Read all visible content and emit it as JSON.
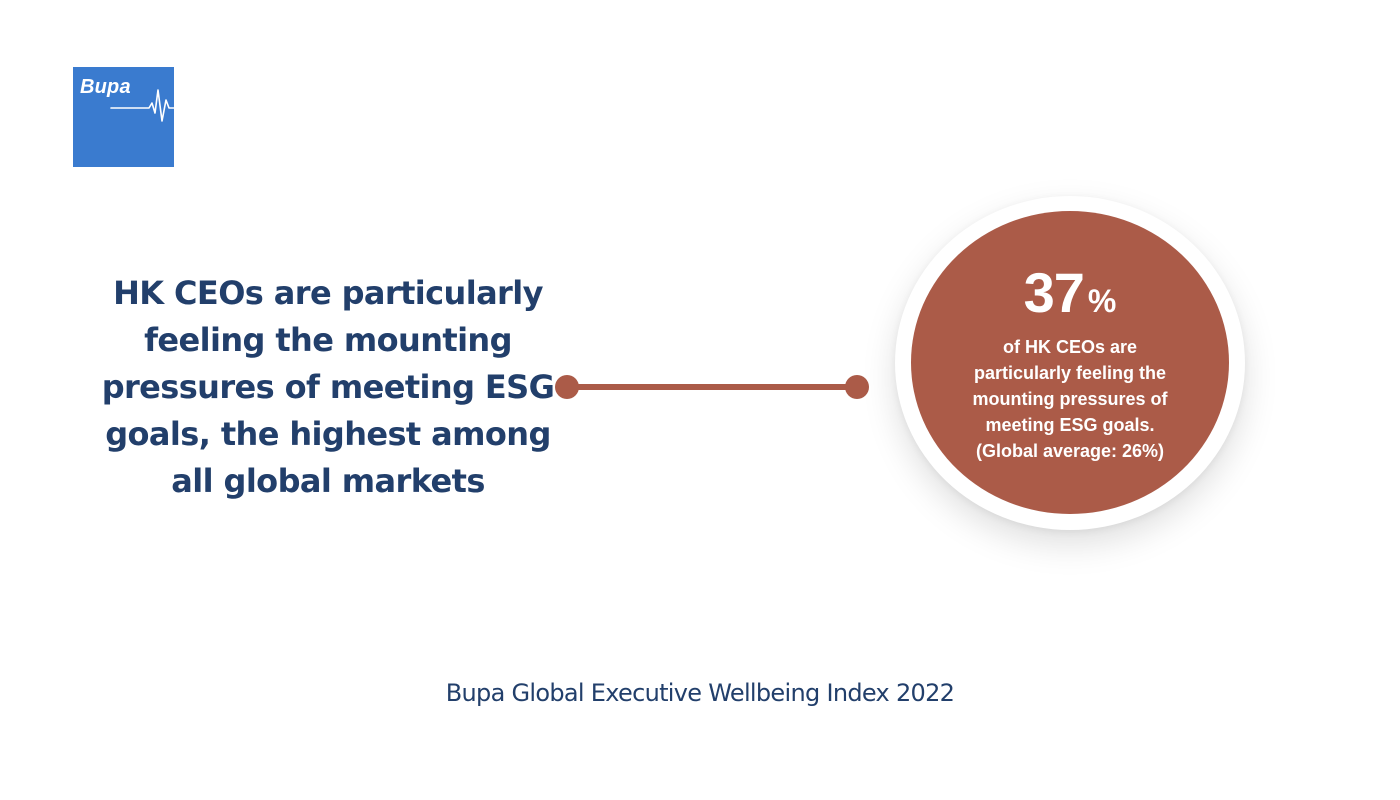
{
  "brand": {
    "logo_text": "Bupa",
    "logo_color": "#3a7bcf"
  },
  "headline": "HK CEOs are particularly feeling the mounting pressures of meeting ESG goals, the highest among all global markets",
  "stat": {
    "value": "37",
    "unit": "%",
    "description_lines": [
      "of HK CEOs are",
      "particularly feeling the",
      "mounting pressures of",
      "meeting ESG goals.",
      "(Global average: 26%)"
    ],
    "circle_color": "#ab5b48"
  },
  "connector": {
    "color": "#ab5b48",
    "icon": "connector-line-icon"
  },
  "footer": "Bupa Global Executive Wellbeing Index 2022",
  "colors": {
    "navy_text": "#223f6b",
    "background": "#ffffff"
  }
}
